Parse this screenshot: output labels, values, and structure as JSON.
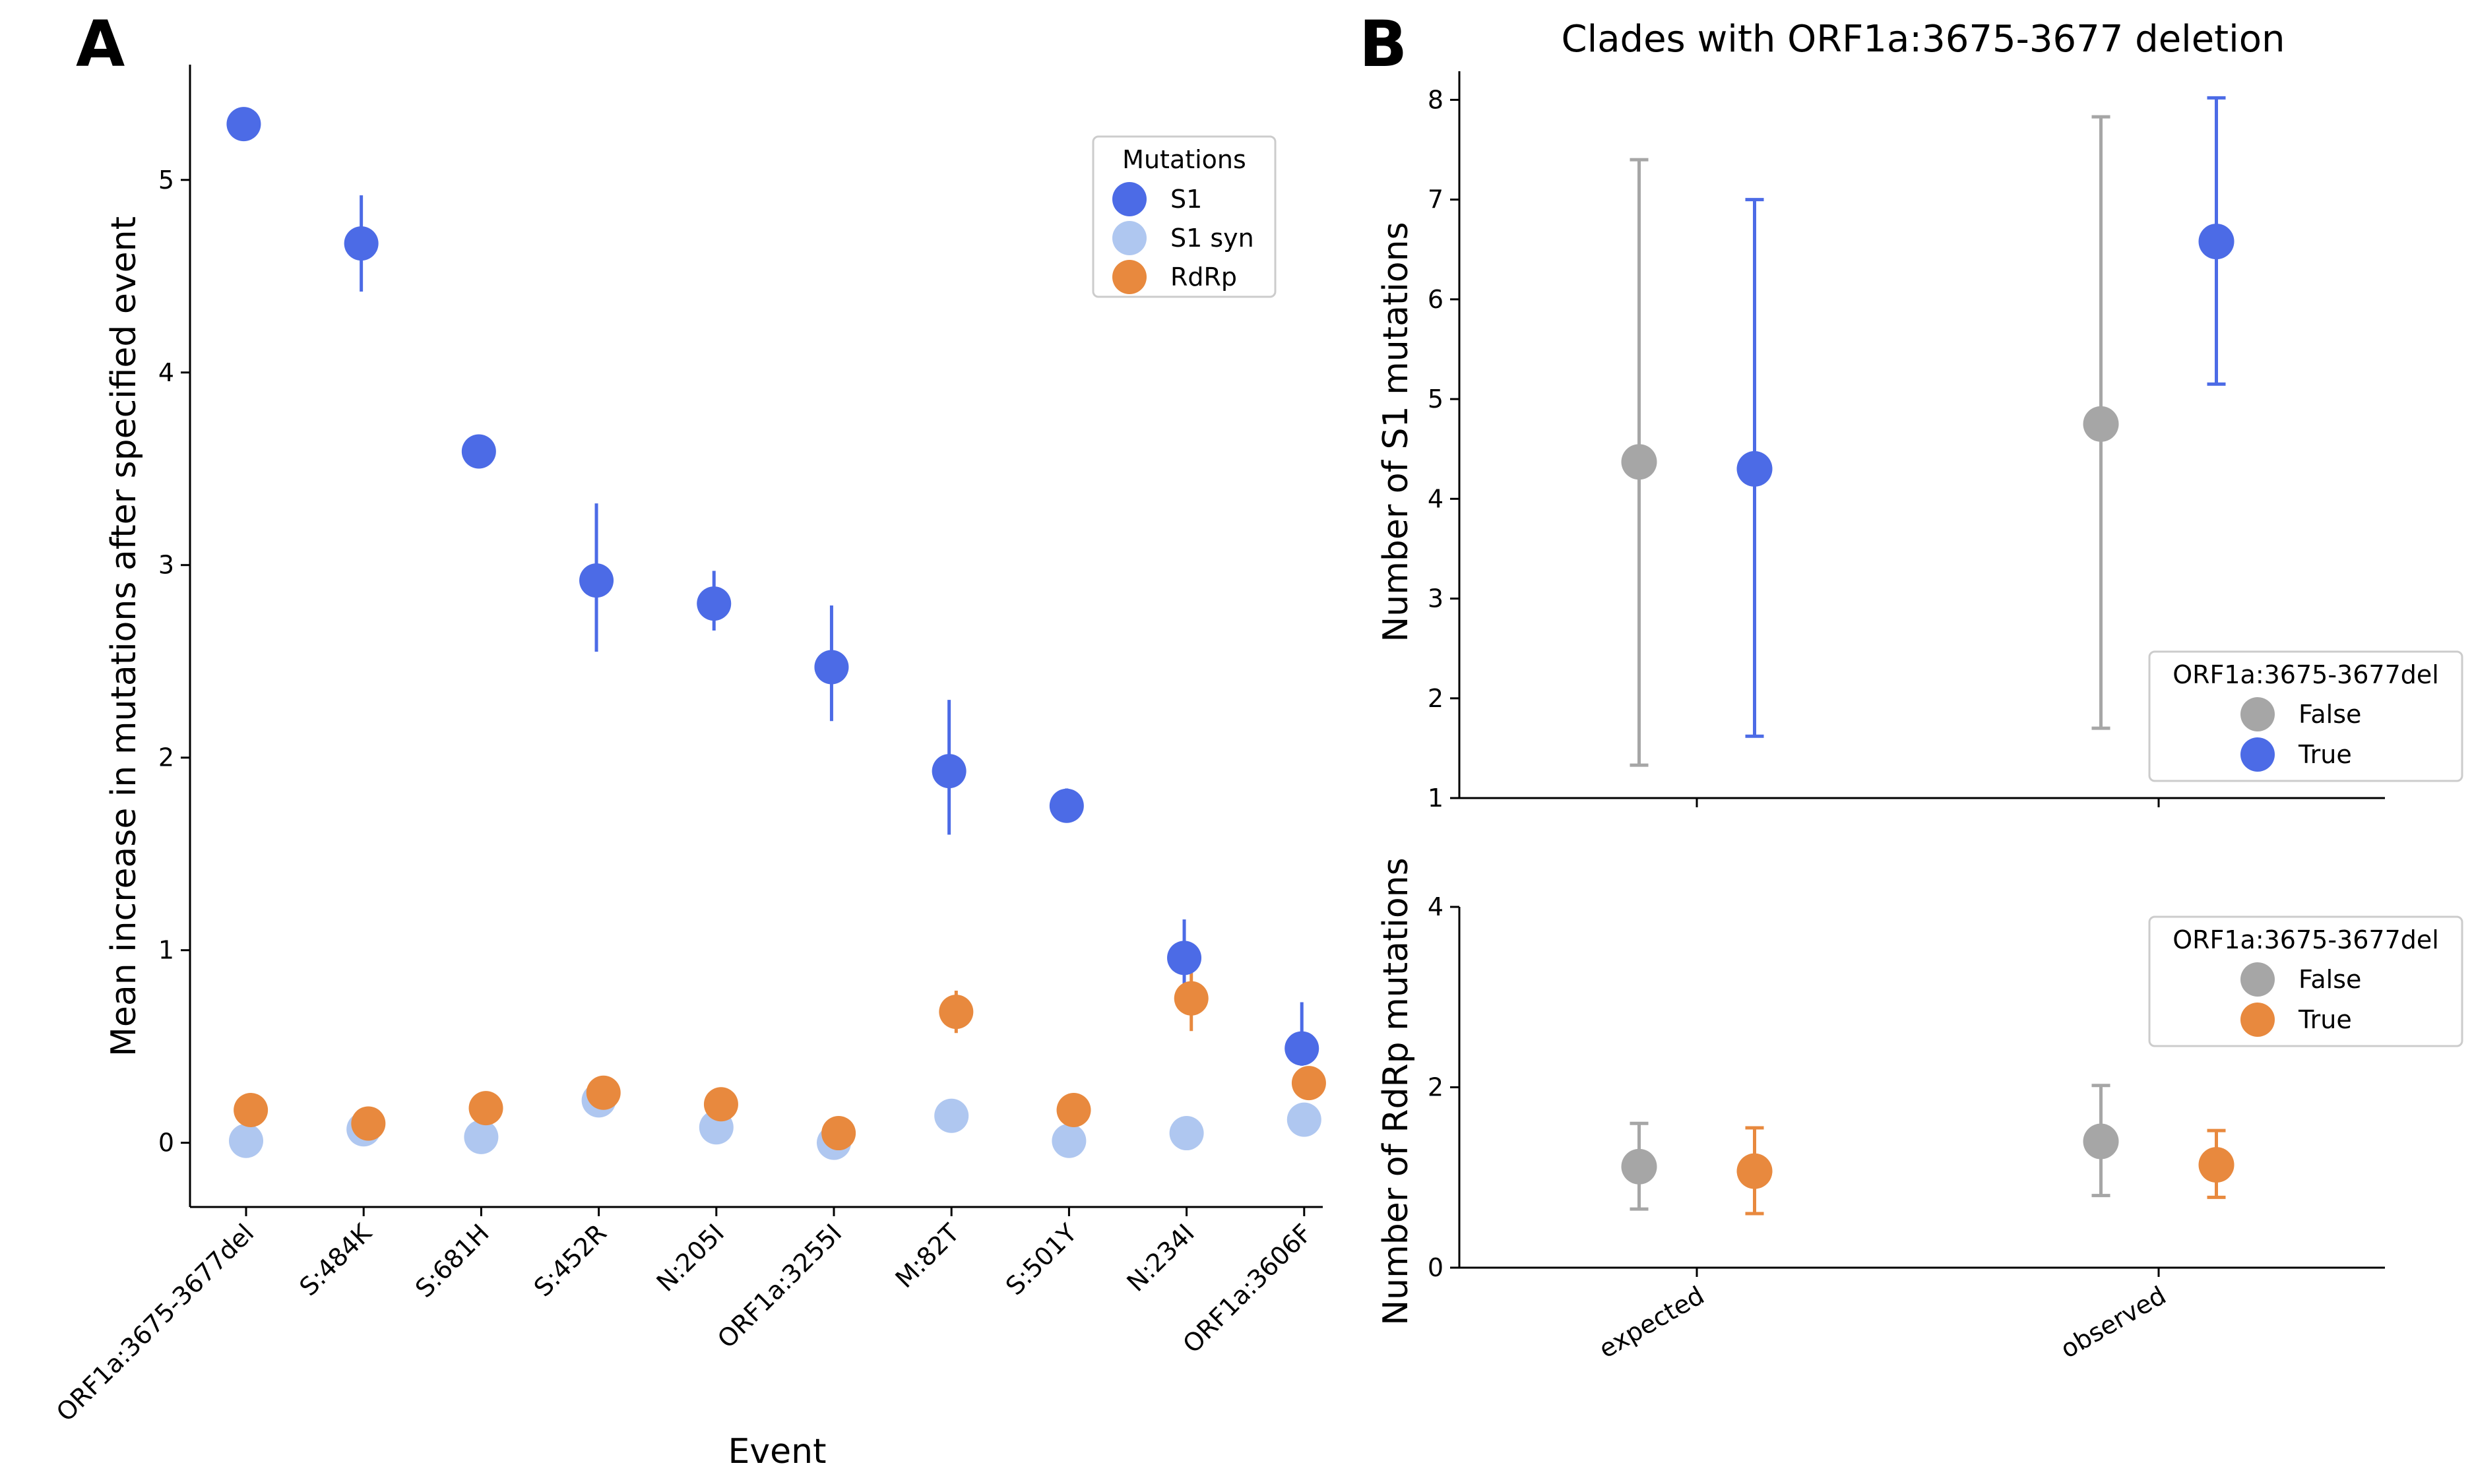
{
  "panels": {
    "a_letter": "A",
    "b_letter": "B",
    "b_title": "Clades with ORF1a:3675-3677 deletion"
  },
  "colors": {
    "s1": "#4C6BE6",
    "s1_syn": "#AFC7F0",
    "rdrp": "#E8893E",
    "false": "#A6A6A6"
  },
  "chart_data": [
    {
      "id": "A",
      "type": "scatter",
      "title": "",
      "xlabel": "Event",
      "ylabel": "Mean increase in mutations after specified event",
      "categories": [
        "ORF1a:3675-3677del",
        "S:484K",
        "S:681H",
        "S:452R",
        "N:205I",
        "ORF1a:3255I",
        "M:82T",
        "S:501Y",
        "N:234I",
        "ORF1a:3606F"
      ],
      "ylim": [
        -0.33,
        5.65
      ],
      "yticks": [
        0,
        1,
        2,
        3,
        4,
        5
      ],
      "legend": {
        "title": "Mutations",
        "position": "upper-right"
      },
      "series": [
        {
          "name": "S1",
          "color": "#4C6BE6",
          "offset": -0.02,
          "values": [
            5.29,
            4.67,
            3.59,
            2.92,
            2.8,
            2.47,
            1.93,
            1.75,
            0.96,
            0.49
          ],
          "low": [
            5.29,
            4.42,
            3.59,
            2.55,
            2.66,
            2.19,
            1.6,
            1.7,
            0.81,
            0.4
          ],
          "high": [
            5.29,
            4.92,
            3.59,
            3.32,
            2.97,
            2.79,
            2.3,
            1.84,
            1.16,
            0.73
          ]
        },
        {
          "name": "S1 syn",
          "color": "#AFC7F0",
          "offset": 0.0,
          "values": [
            0.01,
            0.07,
            0.03,
            0.22,
            0.08,
            0.0,
            0.14,
            0.01,
            0.05,
            0.12
          ],
          "low": [
            0.01,
            0.07,
            0.03,
            0.22,
            0.08,
            0.0,
            0.14,
            0.01,
            0.05,
            0.12
          ],
          "high": [
            0.01,
            0.07,
            0.03,
            0.22,
            0.08,
            0.0,
            0.14,
            0.01,
            0.05,
            0.12
          ]
        },
        {
          "name": "RdRp",
          "color": "#E8893E",
          "offset": 0.04,
          "values": [
            0.17,
            0.1,
            0.18,
            0.26,
            0.2,
            0.05,
            0.68,
            0.17,
            0.75,
            0.31
          ],
          "low": [
            0.17,
            0.1,
            0.18,
            0.26,
            0.2,
            0.05,
            0.57,
            0.17,
            0.58,
            0.25
          ],
          "high": [
            0.17,
            0.1,
            0.18,
            0.26,
            0.2,
            0.05,
            0.79,
            0.17,
            0.93,
            0.37
          ]
        }
      ]
    },
    {
      "id": "B-top",
      "type": "scatter",
      "title": "Clades with ORF1a:3675-3677 deletion",
      "xlabel": "",
      "ylabel": "Number of S1 mutations",
      "categories": [
        "expected",
        "observed"
      ],
      "ylim": [
        1,
        8.3
      ],
      "yticks": [
        1,
        2,
        3,
        4,
        5,
        6,
        7,
        8
      ],
      "legend": {
        "title": "ORF1a:3675-3677del",
        "position": "lower-right"
      },
      "series": [
        {
          "name": "False",
          "color": "#A6A6A6",
          "offset": -0.125,
          "values": [
            4.37,
            4.75
          ],
          "low": [
            1.33,
            1.7
          ],
          "high": [
            7.4,
            7.83
          ]
        },
        {
          "name": "True",
          "color": "#4C6BE6",
          "offset": 0.125,
          "values": [
            4.3,
            6.58
          ],
          "low": [
            1.62,
            5.15
          ],
          "high": [
            7.0,
            8.02
          ]
        }
      ]
    },
    {
      "id": "B-bottom",
      "type": "scatter",
      "title": "",
      "xlabel": "",
      "ylabel": "Number of RdRp mutations",
      "categories": [
        "expected",
        "observed"
      ],
      "ylim": [
        0,
        4
      ],
      "yticks": [
        0,
        2,
        4
      ],
      "legend": {
        "title": "ORF1a:3675-3677del",
        "position": "upper-right"
      },
      "series": [
        {
          "name": "False",
          "color": "#A6A6A6",
          "offset": -0.125,
          "values": [
            1.12,
            1.4
          ],
          "low": [
            0.65,
            0.8
          ],
          "high": [
            1.6,
            2.02
          ]
        },
        {
          "name": "True",
          "color": "#E8893E",
          "offset": 0.125,
          "values": [
            1.07,
            1.14
          ],
          "low": [
            0.6,
            0.78
          ],
          "high": [
            1.55,
            1.52
          ]
        }
      ]
    }
  ]
}
